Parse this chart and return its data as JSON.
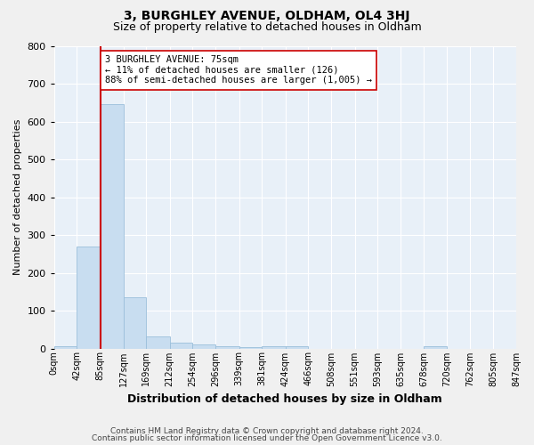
{
  "title": "3, BURGHLEY AVENUE, OLDHAM, OL4 3HJ",
  "subtitle": "Size of property relative to detached houses in Oldham",
  "xlabel": "Distribution of detached houses by size in Oldham",
  "ylabel": "Number of detached properties",
  "bar_values": [
    7,
    270,
    645,
    135,
    32,
    16,
    10,
    6,
    4,
    5,
    5,
    0,
    0,
    0,
    0,
    0,
    5,
    0,
    0,
    0
  ],
  "bar_labels": [
    "0sqm",
    "42sqm",
    "85sqm",
    "127sqm",
    "169sqm",
    "212sqm",
    "254sqm",
    "296sqm",
    "339sqm",
    "381sqm",
    "424sqm",
    "466sqm",
    "508sqm",
    "551sqm",
    "593sqm",
    "635sqm",
    "678sqm",
    "720sqm",
    "762sqm",
    "805sqm",
    "847sqm"
  ],
  "bar_color": "#c8ddf0",
  "bar_edge_color": "#9bbfdb",
  "vline_x_bin": 1,
  "vline_color": "#cc0000",
  "annotation_text": "3 BURGHLEY AVENUE: 75sqm\n← 11% of detached houses are smaller (126)\n88% of semi-detached houses are larger (1,005) →",
  "annotation_box_color": "#ffffff",
  "annotation_box_edge": "#cc0000",
  "ylim": [
    0,
    800
  ],
  "yticks": [
    0,
    100,
    200,
    300,
    400,
    500,
    600,
    700,
    800
  ],
  "bin_edges": [
    0,
    42,
    85,
    127,
    169,
    212,
    254,
    296,
    339,
    381,
    424,
    466,
    508,
    551,
    593,
    635,
    678,
    720,
    762,
    805,
    847
  ],
  "vline_x": 85,
  "footer_line1": "Contains HM Land Registry data © Crown copyright and database right 2024.",
  "footer_line2": "Contains public sector information licensed under the Open Government Licence v3.0.",
  "bg_color": "#e8f0f8",
  "fig_bg_color": "#f0f0f0",
  "grid_color": "#ffffff",
  "title_fontsize": 10,
  "subtitle_fontsize": 9,
  "xlabel_fontsize": 9,
  "ylabel_fontsize": 8,
  "annotation_fontsize": 7.5,
  "footer_fontsize": 6.5
}
